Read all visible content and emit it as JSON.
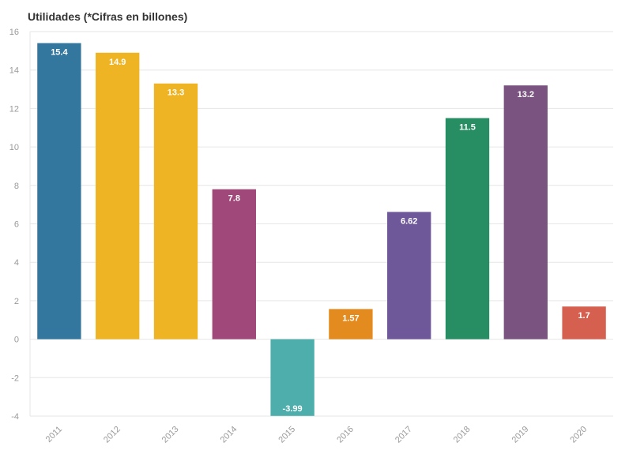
{
  "chart_data": {
    "type": "bar",
    "title": "Utilidades (*Cifras en billones)",
    "xlabel": "",
    "ylabel": "",
    "categories": [
      "2011",
      "2012",
      "2013",
      "2014",
      "2015",
      "2016",
      "2017",
      "2018",
      "2019",
      "2020"
    ],
    "values": [
      15.4,
      14.9,
      13.3,
      7.8,
      -3.99,
      1.57,
      6.62,
      11.5,
      13.2,
      1.7
    ],
    "data_labels": [
      "15.4",
      "14.9",
      "13.3",
      "7.8",
      "-3.99",
      "1.57",
      "6.62",
      "11.5",
      "13.2",
      "1.7"
    ],
    "colors": [
      "#33779f",
      "#efb424",
      "#efb424",
      "#a0487a",
      "#4daeac",
      "#e48b1f",
      "#6e5899",
      "#278e63",
      "#7b5381",
      "#d6604f"
    ],
    "ylim": [
      -4,
      16
    ],
    "yticks": [
      16,
      14,
      12,
      10,
      8,
      6,
      4,
      2,
      0,
      -2,
      -4
    ],
    "grid": true,
    "legend": "none"
  }
}
